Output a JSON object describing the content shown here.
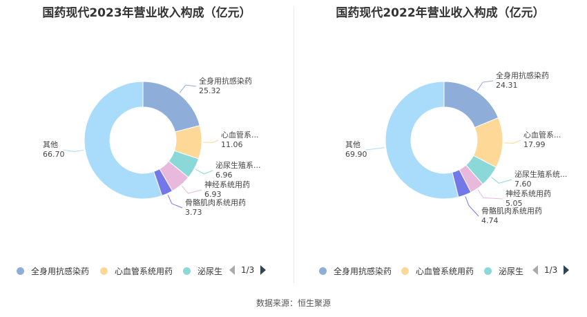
{
  "chart_data": [
    {
      "type": "pie",
      "title": "国药现代2023年营业收入构成（亿元）",
      "categories": [
        "全身用抗感染药",
        "心血管系...",
        "泌尿生殖系...",
        "神经系统用药",
        "骨骼肌肉系统用药",
        "其他"
      ],
      "values": [
        25.32,
        11.06,
        6.96,
        6.93,
        3.73,
        66.7
      ],
      "value_labels": [
        "25.32",
        "11.06",
        "6.96",
        "6.93",
        "3.73",
        "66.70"
      ],
      "colors": [
        "#8eadd9",
        "#fdd896",
        "#8bd8d8",
        "#e8b8dd",
        "#7377e8",
        "#a9dcfb"
      ]
    },
    {
      "type": "pie",
      "title": "国药现代2022年营业收入构成（亿元）",
      "categories": [
        "全身用抗感染药",
        "心血管系...",
        "泌尿生殖系统...",
        "神经系统用药",
        "骨骼肌肉系统用药",
        "其他"
      ],
      "values": [
        24.31,
        17.99,
        7.6,
        5.05,
        4.74,
        69.9
      ],
      "value_labels": [
        "24.31",
        "17.99",
        "7.60",
        "5.05",
        "4.74",
        "69.90"
      ],
      "colors": [
        "#8eadd9",
        "#fdd896",
        "#8bd8d8",
        "#e8b8dd",
        "#7377e8",
        "#a9dcfb"
      ]
    }
  ],
  "legend": {
    "items": [
      {
        "label": "全身用抗感染药",
        "color": "#8eadd9"
      },
      {
        "label": "心血管系统用药",
        "color": "#fdd896"
      },
      {
        "label": "泌尿生",
        "color": "#8bd8d8"
      }
    ],
    "page": "1/3"
  },
  "source": "数据来源：恒生聚源"
}
